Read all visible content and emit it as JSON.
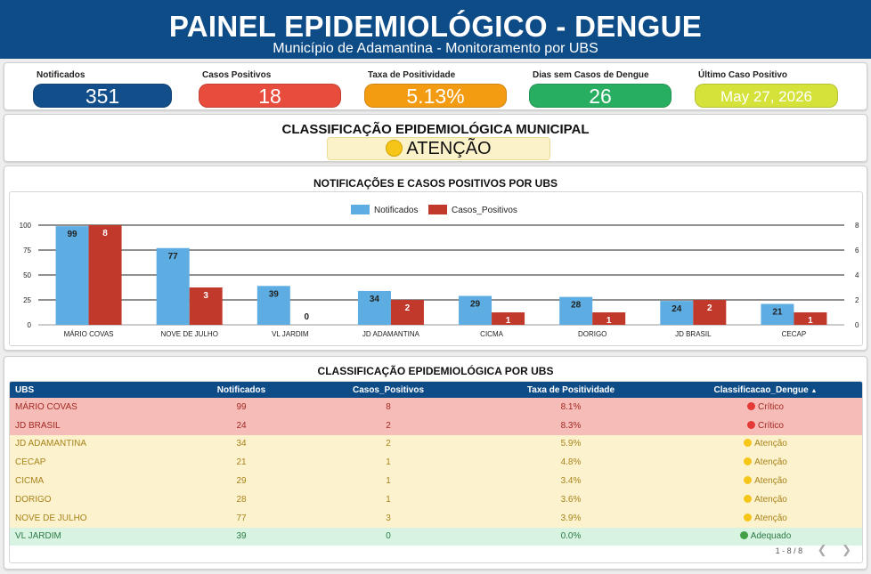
{
  "header": {
    "title": "PAINEL EPIDEMIOLÓGICO - DENGUE",
    "subtitle": "Município de Adamantina - Monitoramento por UBS"
  },
  "kpis": [
    {
      "label": "Notificados",
      "value": "351",
      "color": "#124e8a"
    },
    {
      "label": "Casos Positivos",
      "value": "18",
      "color": "#e74c3c"
    },
    {
      "label": "Taxa de Positividade",
      "value": "5.13%",
      "color": "#f39c12"
    },
    {
      "label": "Dias sem Casos de Dengue",
      "value": "26",
      "color": "#27ae60"
    },
    {
      "label": "Último Caso Positivo",
      "value": "May 27, 2026",
      "color": "#d4e23a"
    }
  ],
  "municipal": {
    "title": "CLASSIFICAÇÃO EPIDEMIOLÓGICA MUNICIPAL",
    "status": "ATENÇÃO",
    "icon": "yellow-circle-icon",
    "color": "#f5c518"
  },
  "chart_title": "NOTIFICAÇÕES E CASOS POSITIVOS POR UBS",
  "chart_data": {
    "type": "bar",
    "categories": [
      "MÁRIO COVAS",
      "NOVE DE JULHO",
      "VL JARDIM",
      "JD ADAMANTINA",
      "CICMA",
      "DORIGO",
      "JD BRASIL",
      "CECAP"
    ],
    "series": [
      {
        "name": "Notificados",
        "values": [
          99,
          77,
          39,
          34,
          29,
          28,
          24,
          21
        ],
        "color": "#5dade2",
        "axis": "left"
      },
      {
        "name": "Casos_Positivos",
        "values": [
          8,
          3,
          0,
          2,
          1,
          1,
          2,
          1
        ],
        "color": "#c0392b",
        "axis": "right"
      }
    ],
    "y_left": {
      "min": 0,
      "max": 100,
      "ticks": [
        "0",
        "25",
        "50",
        "75",
        "100"
      ]
    },
    "y_right": {
      "min": 0,
      "max": 8,
      "ticks": [
        "0",
        "2",
        "4",
        "6",
        "8"
      ]
    },
    "legend": "top-center",
    "grid": true
  },
  "table": {
    "title": "CLASSIFICAÇÃO EPIDEMIOLÓGICA POR UBS",
    "columns": [
      "UBS",
      "Notificados",
      "Casos_Positivos",
      "Taxa de Positividade",
      "Classificacao_Dengue"
    ],
    "sort_icon": "sort-up-icon",
    "rows": [
      {
        "ubs": "MÁRIO COVAS",
        "notificados": "99",
        "casos": "8",
        "taxa": "8.1%",
        "classe": "Crítico",
        "level": "critico"
      },
      {
        "ubs": "JD BRASIL",
        "notificados": "24",
        "casos": "2",
        "taxa": "8.3%",
        "classe": "Crítico",
        "level": "critico"
      },
      {
        "ubs": "JD ADAMANTINA",
        "notificados": "34",
        "casos": "2",
        "taxa": "5.9%",
        "classe": "Atenção",
        "level": "atencao"
      },
      {
        "ubs": "CECAP",
        "notificados": "21",
        "casos": "1",
        "taxa": "4.8%",
        "classe": "Atenção",
        "level": "atencao"
      },
      {
        "ubs": "CICMA",
        "notificados": "29",
        "casos": "1",
        "taxa": "3.4%",
        "classe": "Atenção",
        "level": "atencao"
      },
      {
        "ubs": "DORIGO",
        "notificados": "28",
        "casos": "1",
        "taxa": "3.6%",
        "classe": "Atenção",
        "level": "atencao"
      },
      {
        "ubs": "NOVE DE JULHO",
        "notificados": "77",
        "casos": "3",
        "taxa": "3.9%",
        "classe": "Atenção",
        "level": "atencao"
      },
      {
        "ubs": "VL JARDIM",
        "notificados": "39",
        "casos": "0",
        "taxa": "0.0%",
        "classe": "Adequado",
        "level": "adequado"
      }
    ],
    "level_colors": {
      "critico": "#e53935",
      "atencao": "#f5c518",
      "adequado": "#43a047"
    },
    "pager": "1 - 8 / 8"
  }
}
